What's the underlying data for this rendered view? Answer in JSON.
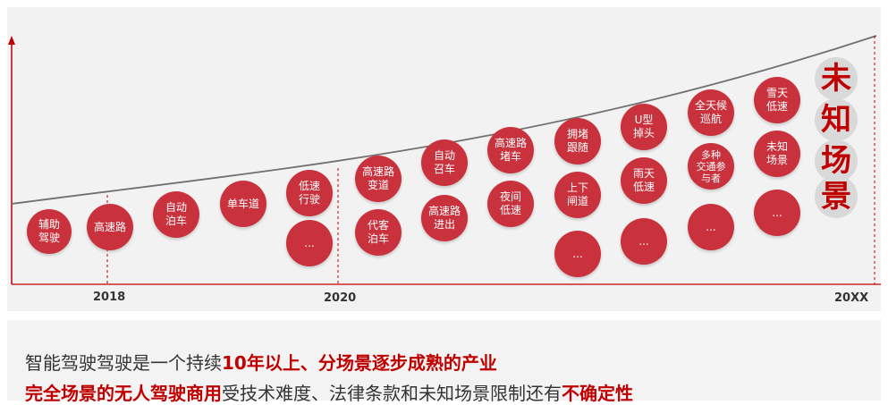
{
  "colors": {
    "bubble": "#c9323d",
    "accent": "#c00000",
    "axis": "#c00000"
  },
  "years": [
    "2018",
    "2020",
    "20XX"
  ],
  "bubbles": [
    "辅助\n驾驶",
    "高速路",
    "自动\n泊车",
    "单车道",
    "低速\n行驶",
    "...",
    "高速路\n变道",
    "代客\n泊车",
    "自动\n召车",
    "高速路\n进出",
    "高速路\n堵车",
    "夜间\n低速",
    "拥堵\n跟随",
    "上下\n闸道",
    "...",
    "U型\n掉头",
    "雨天\n低速",
    "...",
    "全天候\n巡航",
    "多种\n交通参\n与者",
    "...",
    "雪天\n低速",
    "未知\n场景",
    "..."
  ],
  "unknown_scene": [
    "未",
    "知",
    "场",
    "景"
  ],
  "summary": {
    "line1_a": "智能驾驶驾驶是一个持续",
    "line1_b": "10年以上、分场景逐步成熟的产业",
    "line2_a": "完全场景的无人驾驶商用",
    "line2_b": "受技术难度、法律条款和未知场景限制还有",
    "line2_c": "不确定性"
  }
}
